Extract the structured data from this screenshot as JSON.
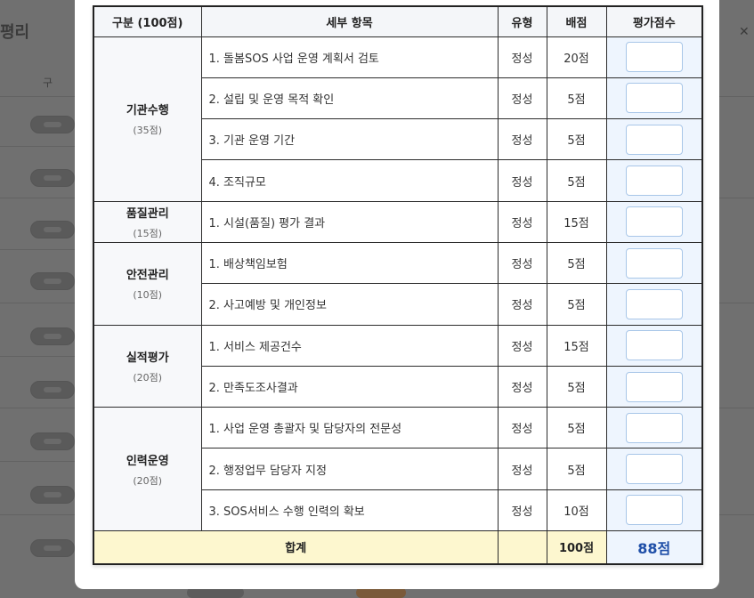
{
  "background": {
    "page_title": "평리",
    "column_label": "구"
  },
  "table": {
    "headers": {
      "category": "구분 (100점)",
      "item": "세부 항목",
      "type": "유형",
      "max": "배점",
      "score": "평가점수"
    },
    "categories": [
      {
        "name": "기관수행",
        "points": "(35점)"
      },
      {
        "name": "품질관리",
        "points": "(15점)"
      },
      {
        "name": "안전관리",
        "points": "(10점)"
      },
      {
        "name": "실적평가",
        "points": "(20점)"
      },
      {
        "name": "인력운영",
        "points": "(20점)"
      }
    ],
    "rows": [
      {
        "item": "1. 돌봄SOS 사업 운영 계획서 검토",
        "type": "정성",
        "max": "20점",
        "score": ""
      },
      {
        "item": "2. 설립 및 운영 목적 확인",
        "type": "정성",
        "max": "5점",
        "score": ""
      },
      {
        "item": "3. 기관 운영 기간",
        "type": "정성",
        "max": "5점",
        "score": ""
      },
      {
        "item": "4. 조직규모",
        "type": "정성",
        "max": "5점",
        "score": ""
      },
      {
        "item": "1. 시설(품질) 평가 결과",
        "type": "정성",
        "max": "15점",
        "score": ""
      },
      {
        "item": "1. 배상책임보험",
        "type": "정성",
        "max": "5점",
        "score": ""
      },
      {
        "item": "2. 사고예방 및 개인정보",
        "type": "정성",
        "max": "5점",
        "score": ""
      },
      {
        "item": "1. 서비스 제공건수",
        "type": "정성",
        "max": "15점",
        "score": ""
      },
      {
        "item": "2. 만족도조사결과",
        "type": "정성",
        "max": "5점",
        "score": ""
      },
      {
        "item": "1. 사업 운영 총괄자 및 담당자의 전문성",
        "type": "정성",
        "max": "5점",
        "score": ""
      },
      {
        "item": "2. 행정업무 담당자 지정",
        "type": "정성",
        "max": "5점",
        "score": ""
      },
      {
        "item": "3. SOS서비스 수행 인력의 확보",
        "type": "정성",
        "max": "10점",
        "score": ""
      }
    ],
    "total": {
      "label": "합계",
      "type": "",
      "max": "100점",
      "score": "88점"
    }
  },
  "colors": {
    "score_column_bg": "#eef5fe",
    "total_row_bg": "#fdf7cf",
    "total_score_text": "#1f4fa8",
    "input_border": "#a8c6e8"
  }
}
